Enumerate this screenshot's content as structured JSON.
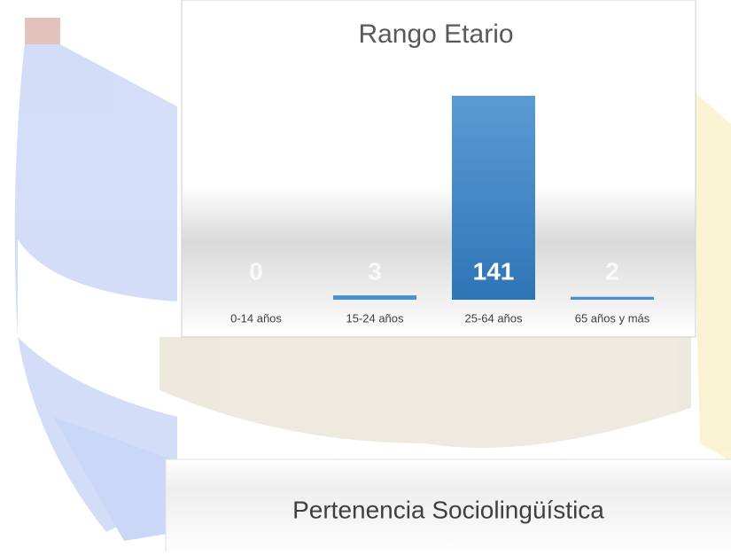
{
  "chart_data": {
    "type": "bar",
    "title": "Rango Etario",
    "categories": [
      "0-14 años",
      "15-24 años",
      "25-64 años",
      "65 años y más"
    ],
    "values": [
      0,
      3,
      141,
      2
    ],
    "color": "#4a8fd0"
  },
  "second_panel": {
    "title": "Pertenencia Sociolingüística"
  }
}
